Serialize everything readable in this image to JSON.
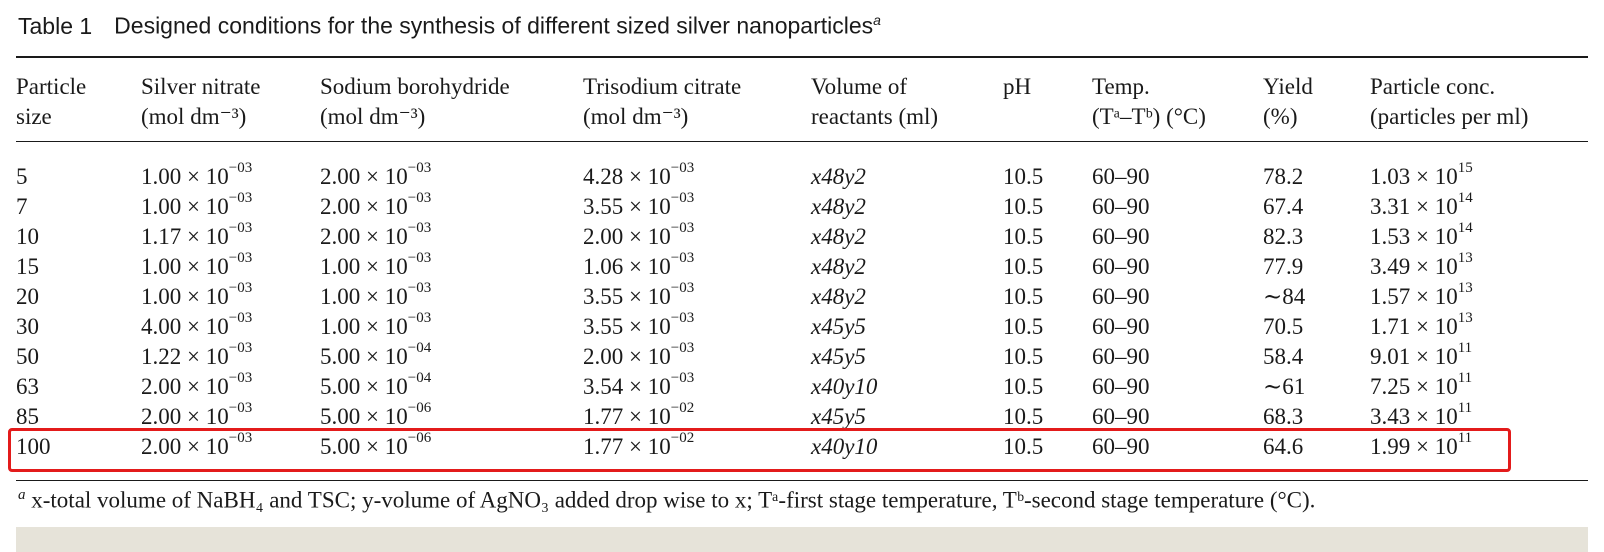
{
  "caption": {
    "label": "Table 1",
    "title": "Designed conditions for the synthesis of different sized silver nanoparticles",
    "footnote_marker": "a"
  },
  "headers": [
    {
      "line1": "Particle",
      "line2": "size"
    },
    {
      "line1": "Silver nitrate",
      "line2": "(mol dm⁻³)"
    },
    {
      "line1": "Sodium borohydride",
      "line2": "(mol dm⁻³)"
    },
    {
      "line1": "Trisodium citrate",
      "line2": "(mol dm⁻³)"
    },
    {
      "line1": "Volume of",
      "line2": "reactants (ml)"
    },
    {
      "line1": "",
      "line2": "pH"
    },
    {
      "line1": "Temp.",
      "line2": "(Tᵃ–Tᵇ) (°C)"
    },
    {
      "line1": "Yield",
      "line2": "(%)"
    },
    {
      "line1": "Particle conc.",
      "line2": "(particles per ml)"
    }
  ],
  "rows": [
    {
      "size": "5",
      "an_m": "1.00 × 10",
      "an_e": "−03",
      "sb_m": "2.00 × 10",
      "sb_e": "−03",
      "tc_m": "4.28 × 10",
      "tc_e": "−03",
      "vol": "x48y2",
      "ph": "10.5",
      "temp": "60–90",
      "yield": "78.2",
      "pc_m": "1.03 × 10",
      "pc_e": "15"
    },
    {
      "size": "7",
      "an_m": "1.00 × 10",
      "an_e": "−03",
      "sb_m": "2.00 × 10",
      "sb_e": "−03",
      "tc_m": "3.55 × 10",
      "tc_e": "−03",
      "vol": "x48y2",
      "ph": "10.5",
      "temp": "60–90",
      "yield": "67.4",
      "pc_m": "3.31 × 10",
      "pc_e": "14"
    },
    {
      "size": "10",
      "an_m": "1.17 × 10",
      "an_e": "−03",
      "sb_m": "2.00 × 10",
      "sb_e": "−03",
      "tc_m": "2.00 × 10",
      "tc_e": "−03",
      "vol": "x48y2",
      "ph": "10.5",
      "temp": "60–90",
      "yield": "82.3",
      "pc_m": "1.53 × 10",
      "pc_e": "14"
    },
    {
      "size": "15",
      "an_m": "1.00 × 10",
      "an_e": "−03",
      "sb_m": "1.00 × 10",
      "sb_e": "−03",
      "tc_m": "1.06 × 10",
      "tc_e": "−03",
      "vol": "x48y2",
      "ph": "10.5",
      "temp": "60–90",
      "yield": "77.9",
      "pc_m": "3.49 × 10",
      "pc_e": "13"
    },
    {
      "size": "20",
      "an_m": "1.00 × 10",
      "an_e": "−03",
      "sb_m": "1.00 × 10",
      "sb_e": "−03",
      "tc_m": "3.55 × 10",
      "tc_e": "−03",
      "vol": "x48y2",
      "ph": "10.5",
      "temp": "60–90",
      "yield": "∼84",
      "pc_m": "1.57 × 10",
      "pc_e": "13"
    },
    {
      "size": "30",
      "an_m": "4.00 × 10",
      "an_e": "−03",
      "sb_m": "1.00 × 10",
      "sb_e": "−03",
      "tc_m": "3.55 × 10",
      "tc_e": "−03",
      "vol": "x45y5",
      "ph": "10.5",
      "temp": "60–90",
      "yield": "70.5",
      "pc_m": "1.71 × 10",
      "pc_e": "13"
    },
    {
      "size": "50",
      "an_m": "1.22 × 10",
      "an_e": "−03",
      "sb_m": "5.00 × 10",
      "sb_e": "−04",
      "tc_m": "2.00 × 10",
      "tc_e": "−03",
      "vol": "x45y5",
      "ph": "10.5",
      "temp": "60–90",
      "yield": "58.4",
      "pc_m": "9.01 × 10",
      "pc_e": "11"
    },
    {
      "size": "63",
      "an_m": "2.00 × 10",
      "an_e": "−03",
      "sb_m": "5.00 × 10",
      "sb_e": "−04",
      "tc_m": "3.54 × 10",
      "tc_e": "−03",
      "vol": "x40y10",
      "ph": "10.5",
      "temp": "60–90",
      "yield": "∼61",
      "pc_m": "7.25 × 10",
      "pc_e": "11"
    },
    {
      "size": "85",
      "an_m": "2.00 × 10",
      "an_e": "−03",
      "sb_m": "5.00 × 10",
      "sb_e": "−06",
      "tc_m": "1.77 × 10",
      "tc_e": "−02",
      "vol": "x45y5",
      "ph": "10.5",
      "temp": "60–90",
      "yield": "68.3",
      "pc_m": "3.43 × 10",
      "pc_e": "11"
    },
    {
      "size": "100",
      "an_m": "2.00 × 10",
      "an_e": "−03",
      "sb_m": "5.00 × 10",
      "sb_e": "−06",
      "tc_m": "1.77 × 10",
      "tc_e": "−02",
      "vol": "x40y10",
      "ph": "10.5",
      "temp": "60–90",
      "yield": "64.6",
      "pc_m": "1.99 × 10",
      "pc_e": "11"
    }
  ],
  "highlight": {
    "row_size": "100",
    "color": "#e31b1b"
  },
  "footnote": {
    "marker": "a",
    "text": "x-total volume of NaBH₄ and TSC; y-volume of AgNO₃ added drop wise to x; Tᵃ-first stage temperature, Tᵇ-second stage temperature (°C)."
  }
}
